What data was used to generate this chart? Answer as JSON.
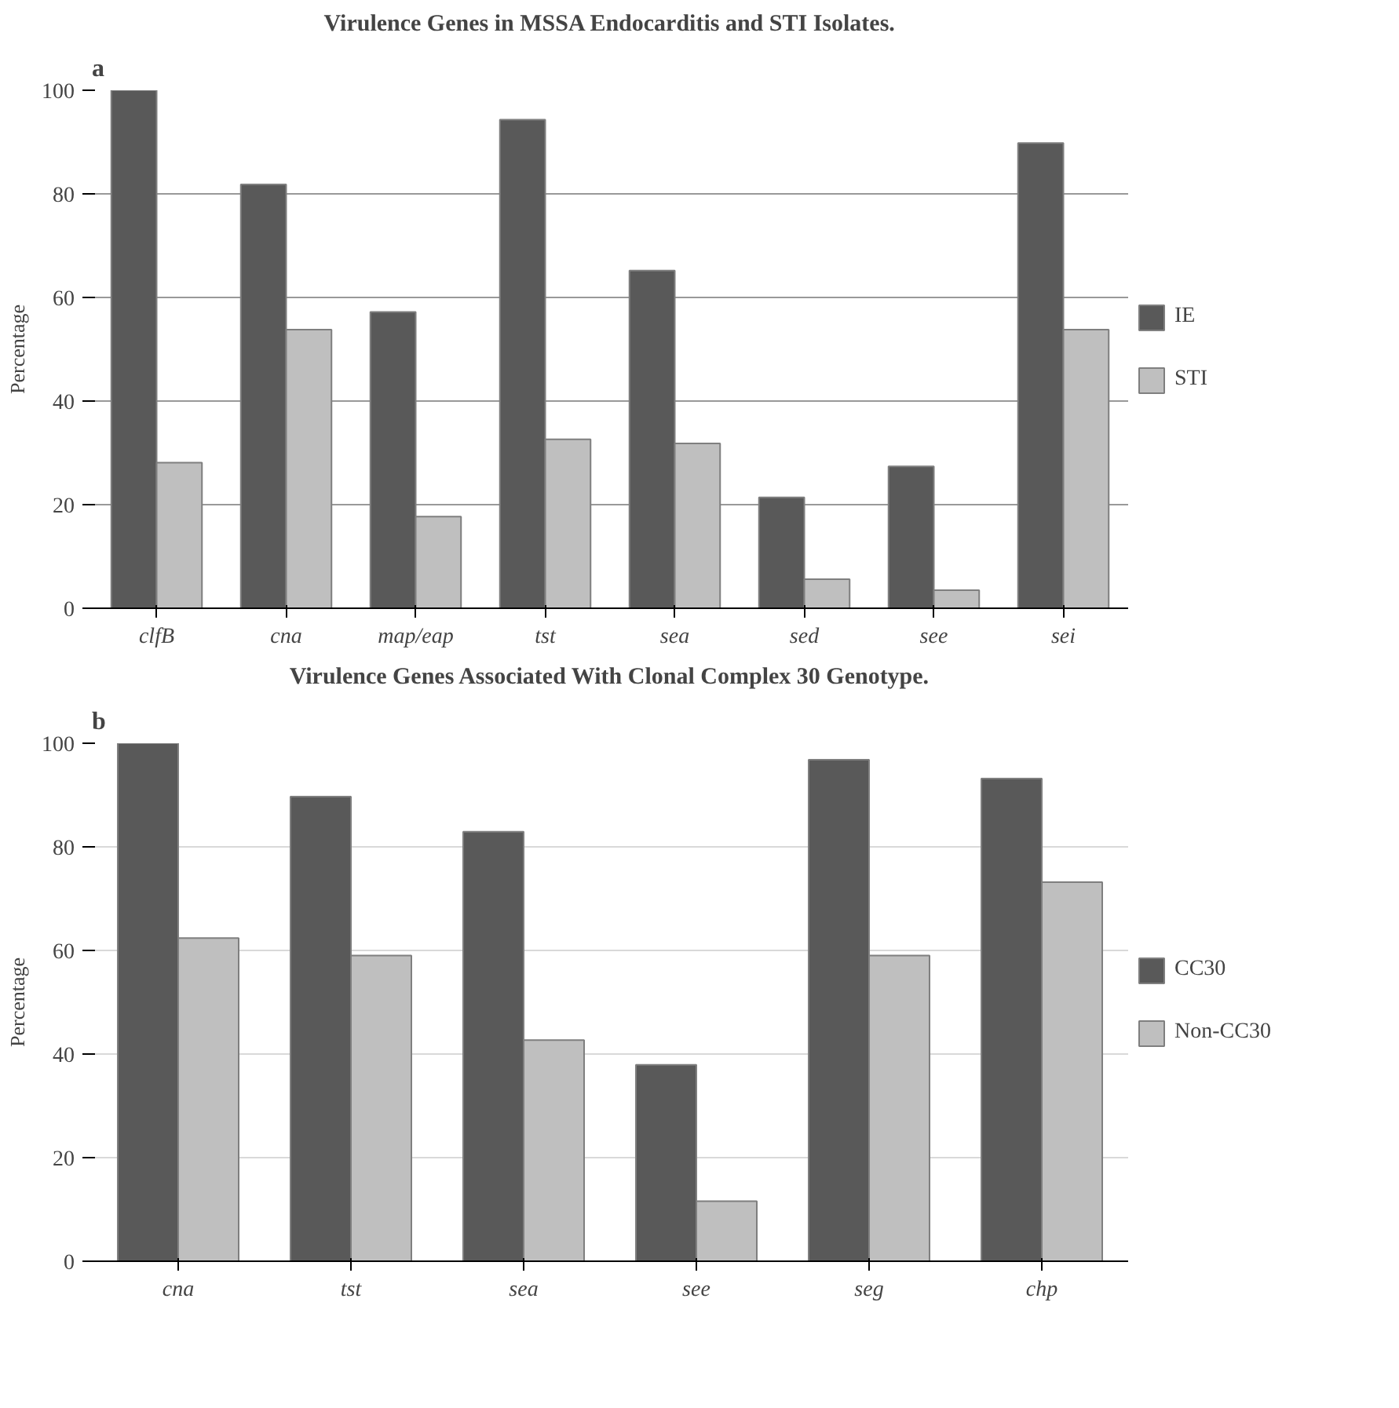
{
  "chart_data": [
    {
      "type": "bar",
      "title": "Virulence Genes in MSSA Endocarditis and STI Isolates.",
      "ylabel": "Percentage",
      "annotations": [
        "a"
      ],
      "categories": [
        "clfB",
        "cna",
        "map/eap",
        "tst",
        "sea",
        "sed",
        "see",
        "sei"
      ],
      "series": [
        {
          "name": "IE",
          "color": "#595959",
          "values": [
            100,
            81.8,
            57.2,
            94.3,
            65.2,
            21.4,
            27.4,
            89.8
          ]
        },
        {
          "name": "STI",
          "color": "#bfbfbf",
          "values": [
            28.1,
            53.8,
            17.7,
            32.6,
            31.8,
            5.6,
            3.5,
            53.8
          ]
        }
      ],
      "ylim": [
        0,
        100
      ],
      "yticks": [
        0,
        20,
        40,
        60,
        80,
        100
      ],
      "grid": "y",
      "legend": "right"
    },
    {
      "type": "bar",
      "title": "Virulence Genes Associated With Clonal Complex 30 Genotype.",
      "ylabel": "Percentage",
      "annotations": [
        "b"
      ],
      "categories": [
        "cna",
        "tst",
        "sea",
        "see",
        "seg",
        "chp"
      ],
      "series": [
        {
          "name": "CC30",
          "color": "#595959",
          "values": [
            100,
            89.7,
            82.9,
            37.9,
            96.8,
            93.2
          ]
        },
        {
          "name": "Non-CC30",
          "color": "#bfbfbf",
          "values": [
            62.4,
            59,
            42.7,
            11.6,
            59,
            73.2
          ]
        }
      ],
      "ylim": [
        0,
        100
      ],
      "yticks": [
        0,
        20,
        40,
        60,
        80,
        100
      ],
      "grid": "y",
      "legend": "right"
    }
  ]
}
